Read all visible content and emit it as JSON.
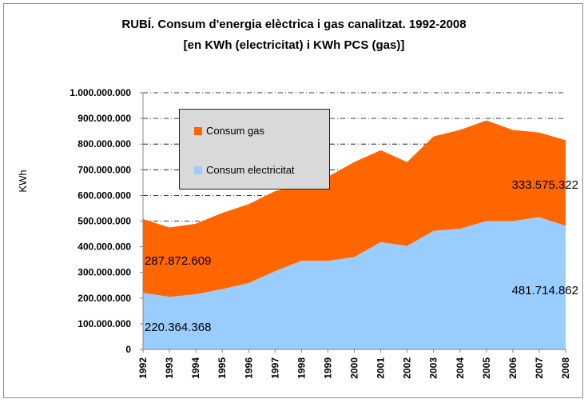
{
  "chart_data": {
    "type": "area",
    "stacked": true,
    "title": "RUBÍ. Consum d'energia elèctrica i gas canalitzat. 1992-2008",
    "subtitle": "[en KWh (electricitat) i KWh PCS (gas)]",
    "ylabel": "KWh",
    "xlabel": "",
    "ylim": [
      0,
      1000000000
    ],
    "grid": "horizontal dash-dot",
    "legend_position": "top-left",
    "categories": [
      "1992",
      "1993",
      "1994",
      "1995",
      "1996",
      "1997",
      "1998",
      "1999",
      "2000",
      "2001",
      "2002",
      "2003",
      "2004",
      "2005",
      "2006",
      "2007",
      "2008"
    ],
    "y_tick_labels": [
      "0",
      "100.000.000",
      "200.000.000",
      "300.000.000",
      "400.000.000",
      "500.000.000",
      "600.000.000",
      "700.000.000",
      "800.000.000",
      "900.000.000",
      "1.000.000.000"
    ],
    "series": [
      {
        "name": "Consum electricitat",
        "color": "#99ccff",
        "values": [
          220364368,
          205000000,
          215000000,
          235000000,
          258000000,
          305000000,
          345000000,
          345000000,
          360000000,
          418000000,
          403000000,
          462000000,
          470000000,
          500000000,
          500000000,
          515000000,
          481714862
        ]
      },
      {
        "name": "Consum gas",
        "color": "#ff6600",
        "values": [
          287872609,
          270000000,
          275000000,
          297000000,
          308000000,
          312000000,
          298000000,
          328000000,
          370000000,
          358000000,
          327000000,
          368000000,
          385000000,
          392000000,
          355000000,
          330000000,
          333575322
        ]
      }
    ],
    "data_labels": [
      {
        "text": "220.364.368",
        "series": "Consum electricitat",
        "category": "1992"
      },
      {
        "text": "287.872.609",
        "series": "Consum gas",
        "category": "1992"
      },
      {
        "text": "481.714.862",
        "series": "Consum electricitat",
        "category": "2008"
      },
      {
        "text": "333.575.322",
        "series": "Consum gas",
        "category": "2008"
      }
    ],
    "legend": [
      "Consum gas",
      "Consum electricitat"
    ],
    "plot_background": "#ffffff",
    "axis_color": "#868686",
    "grid_color": "#000000"
  }
}
